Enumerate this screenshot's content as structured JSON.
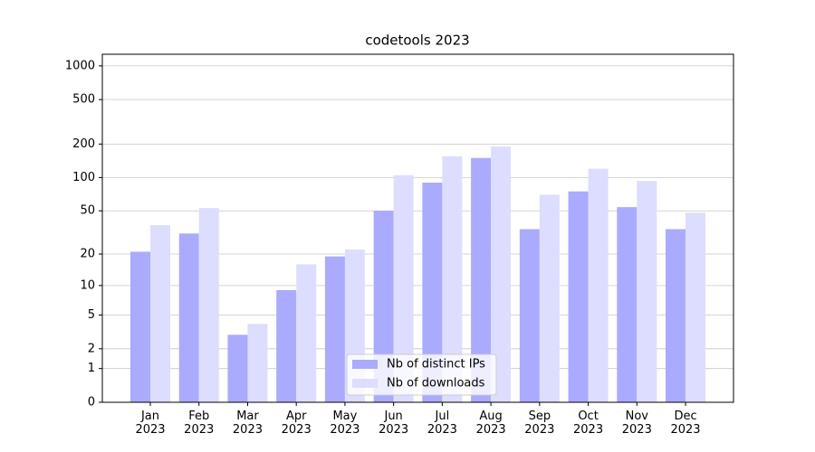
{
  "chart_data": {
    "type": "bar",
    "title": "codetools 2023",
    "categories": [
      "Jan\n2023",
      "Feb\n2023",
      "Mar\n2023",
      "Apr\n2023",
      "May\n2023",
      "Jun\n2023",
      "Jul\n2023",
      "Aug\n2023",
      "Sep\n2023",
      "Oct\n2023",
      "Nov\n2023",
      "Dec\n2023"
    ],
    "series": [
      {
        "name": "Nb of distinct IPs",
        "color": "#aaaaff",
        "values": [
          21,
          31,
          3,
          9,
          19,
          50,
          90,
          150,
          34,
          75,
          54,
          34
        ]
      },
      {
        "name": "Nb of downloads",
        "color": "#ddddff",
        "values": [
          37,
          53,
          4,
          16,
          22,
          105,
          155,
          190,
          70,
          120,
          93,
          48
        ]
      }
    ],
    "yscale": "log1p",
    "ylim": [
      0,
      1270
    ],
    "yticks": [
      0,
      1,
      2,
      5,
      10,
      20,
      50,
      100,
      200,
      500,
      1000
    ],
    "grid": true,
    "legend": "lower center"
  }
}
